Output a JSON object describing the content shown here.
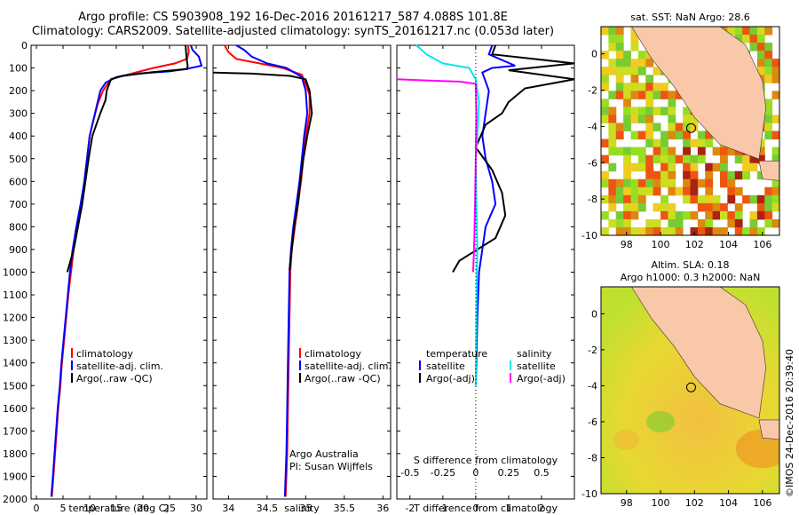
{
  "header": {
    "title_line1": "Argo profile: CS 5903908_192 16-Dec-2016 20161217_587 4.088S 101.8E",
    "title_line2": "Climatology: CARS2009. Satellite-adjusted climatology: synTS_20161217.nc (0.053d later)"
  },
  "credit": "©IMOS 24-Dec-2016 20:39:40",
  "colors": {
    "climatology": "#ff0000",
    "satellite": "#0000ff",
    "argo": "#000000",
    "satellite_s": "#00e5ee",
    "argo_s": "#ff00ff"
  },
  "chart_data": [
    {
      "type": "line",
      "id": "temperature",
      "xlabel": "temperature (deg C)",
      "ylabel": "",
      "xlim": [
        -1,
        32
      ],
      "ylim": [
        2000,
        0
      ],
      "x_ticks": [
        0,
        5,
        10,
        15,
        20,
        25,
        30
      ],
      "y_ticks": [
        0,
        100,
        200,
        300,
        400,
        500,
        600,
        700,
        800,
        900,
        1000,
        1100,
        1200,
        1300,
        1400,
        1500,
        1600,
        1700,
        1800,
        1900,
        2000
      ],
      "legend": [
        "climatology",
        "satellite-adj. clim.",
        "Argo(..raw -QC)"
      ],
      "legend_position": "lower-left",
      "series": [
        {
          "name": "climatology",
          "color": "#ff0000",
          "points": [
            [
              28.5,
              0
            ],
            [
              28.6,
              30
            ],
            [
              28.3,
              60
            ],
            [
              26,
              80
            ],
            [
              22,
              100
            ],
            [
              17,
              130
            ],
            [
              14,
              150
            ],
            [
              12.5,
              200
            ],
            [
              11.5,
              260
            ],
            [
              10.5,
              350
            ],
            [
              10,
              400
            ],
            [
              9.5,
              500
            ],
            [
              9,
              600
            ],
            [
              8.5,
              700
            ],
            [
              7.8,
              800
            ],
            [
              7,
              900
            ],
            [
              6.5,
              1000
            ],
            [
              6,
              1100
            ],
            [
              5.6,
              1200
            ],
            [
              5.2,
              1300
            ],
            [
              4.8,
              1400
            ],
            [
              4.5,
              1500
            ],
            [
              4.1,
              1600
            ],
            [
              3.8,
              1700
            ],
            [
              3.5,
              1800
            ],
            [
              3.2,
              1900
            ],
            [
              2.9,
              1990
            ]
          ]
        },
        {
          "name": "satellite-adj. clim.",
          "color": "#0000ff",
          "points": [
            [
              29,
              0
            ],
            [
              29.3,
              20
            ],
            [
              30.5,
              50
            ],
            [
              31,
              90
            ],
            [
              28,
              105
            ],
            [
              25,
              115
            ],
            [
              19,
              125
            ],
            [
              15,
              140
            ],
            [
              13,
              165
            ],
            [
              12,
              200
            ],
            [
              11.5,
              250
            ],
            [
              10.5,
              350
            ],
            [
              10,
              400
            ],
            [
              9.5,
              500
            ],
            [
              9,
              600
            ],
            [
              8.3,
              700
            ],
            [
              7.5,
              800
            ],
            [
              6.8,
              900
            ],
            [
              6.3,
              1000
            ],
            [
              5.9,
              1100
            ],
            [
              5.5,
              1200
            ],
            [
              5.1,
              1300
            ],
            [
              4.7,
              1400
            ],
            [
              4.4,
              1500
            ],
            [
              4,
              1600
            ],
            [
              3.7,
              1700
            ],
            [
              3.4,
              1800
            ],
            [
              3.1,
              1900
            ],
            [
              2.8,
              1990
            ]
          ]
        },
        {
          "name": "Argo(..raw -QC)",
          "color": "#000000",
          "points": [
            [
              28,
              0
            ],
            [
              28.1,
              30
            ],
            [
              28.2,
              60
            ],
            [
              28.4,
              90
            ],
            [
              28.3,
              105
            ],
            [
              22,
              118
            ],
            [
              16,
              135
            ],
            [
              14,
              150
            ],
            [
              13.2,
              200
            ],
            [
              13,
              240
            ],
            [
              12,
              300
            ],
            [
              10.5,
              400
            ],
            [
              9.8,
              500
            ],
            [
              9.2,
              600
            ],
            [
              8.6,
              700
            ],
            [
              7.8,
              800
            ],
            [
              7,
              900
            ],
            [
              5.8,
              1000
            ]
          ]
        }
      ]
    },
    {
      "type": "line",
      "id": "salinity",
      "xlabel": "salinity",
      "ylabel": "",
      "xlim": [
        33.8,
        36.1
      ],
      "ylim": [
        2000,
        0
      ],
      "x_ticks": [
        34,
        34.5,
        35,
        35.5,
        36
      ],
      "x_tick_labels": [
        "34",
        "34.5",
        "35",
        "35.5",
        "36"
      ],
      "legend": [
        "climatology",
        "satellite-adj. clim.",
        "Argo(..raw -QC)"
      ],
      "legend_position": "lower-right",
      "annotation_line1": "Argo Australia",
      "annotation_line2": "PI: Susan Wijffels",
      "series": [
        {
          "name": "climatology",
          "color": "#ff0000",
          "points": [
            [
              33.95,
              0
            ],
            [
              34,
              30
            ],
            [
              34.1,
              60
            ],
            [
              34.4,
              80
            ],
            [
              34.7,
              100
            ],
            [
              34.95,
              130
            ],
            [
              35,
              170
            ],
            [
              35.05,
              220
            ],
            [
              35.05,
              300
            ],
            [
              35,
              400
            ],
            [
              34.97,
              500
            ],
            [
              34.94,
              600
            ],
            [
              34.9,
              700
            ],
            [
              34.86,
              800
            ],
            [
              34.82,
              900
            ],
            [
              34.8,
              1000
            ],
            [
              34.79,
              1200
            ],
            [
              34.78,
              1400
            ],
            [
              34.77,
              1600
            ],
            [
              34.76,
              1800
            ],
            [
              34.74,
              1990
            ]
          ]
        },
        {
          "name": "satellite-adj. clim.",
          "color": "#0000ff",
          "points": [
            [
              34.1,
              0
            ],
            [
              34.2,
              20
            ],
            [
              34.3,
              50
            ],
            [
              34.5,
              80
            ],
            [
              34.75,
              100
            ],
            [
              34.95,
              140
            ],
            [
              35,
              200
            ],
            [
              35.02,
              300
            ],
            [
              34.98,
              400
            ],
            [
              34.95,
              500
            ],
            [
              34.92,
              600
            ],
            [
              34.88,
              700
            ],
            [
              34.84,
              800
            ],
            [
              34.81,
              900
            ],
            [
              34.79,
              1000
            ],
            [
              34.78,
              1200
            ],
            [
              34.77,
              1400
            ],
            [
              34.76,
              1600
            ],
            [
              34.75,
              1800
            ],
            [
              34.73,
              1990
            ]
          ]
        },
        {
          "name": "Argo(..raw -QC)",
          "color": "#000000",
          "points": [
            [
              33.8,
              120
            ],
            [
              34.3,
              125
            ],
            [
              34.8,
              135
            ],
            [
              35,
              150
            ],
            [
              35.05,
              200
            ],
            [
              35.08,
              300
            ],
            [
              35.02,
              400
            ],
            [
              34.97,
              500
            ],
            [
              34.93,
              600
            ],
            [
              34.9,
              700
            ],
            [
              34.85,
              800
            ],
            [
              34.82,
              900
            ],
            [
              34.79,
              990
            ]
          ]
        }
      ]
    },
    {
      "type": "line",
      "id": "difference",
      "xlabel": "T difference from climatology",
      "xlabel_top": "S difference from climatology",
      "xlim": [
        -2.4,
        3
      ],
      "ylim": [
        2000,
        0
      ],
      "x_ticks": [
        -2,
        -1,
        0,
        1,
        2
      ],
      "x_top_ticks": [
        -0.5,
        -0.25,
        0,
        0.25,
        0.5
      ],
      "x_top_tick_labels": [
        "-0.5",
        "-0.25",
        "0",
        "0.25",
        "0.5"
      ],
      "legend_temperature": [
        "temperature",
        "satellite",
        "Argo(-adj)"
      ],
      "legend_salinity": [
        "salinity",
        "satellite",
        "Argo(-adj)"
      ],
      "series": [
        {
          "name": "satellite",
          "color": "#0000ff",
          "points": [
            [
              0.5,
              0
            ],
            [
              0.4,
              40
            ],
            [
              1.2,
              90
            ],
            [
              0.5,
              100
            ],
            [
              0.2,
              120
            ],
            [
              0.4,
              200
            ],
            [
              0.3,
              300
            ],
            [
              0.2,
              400
            ],
            [
              0.3,
              500
            ],
            [
              0.5,
              600
            ],
            [
              0.6,
              700
            ],
            [
              0.3,
              800
            ],
            [
              0.2,
              900
            ],
            [
              0.1,
              1000
            ],
            [
              0.05,
              1200
            ],
            [
              0.02,
              1400
            ],
            [
              0,
              1500
            ]
          ]
        },
        {
          "name": "Argo(-adj)",
          "color": "#000000",
          "points": [
            [
              0.6,
              0
            ],
            [
              0.5,
              40
            ],
            [
              3,
              80
            ],
            [
              1,
              110
            ],
            [
              3,
              150
            ],
            [
              1.5,
              190
            ],
            [
              1,
              250
            ],
            [
              0.8,
              300
            ],
            [
              0.3,
              350
            ],
            [
              0,
              450
            ],
            [
              0.5,
              550
            ],
            [
              0.8,
              650
            ],
            [
              0.9,
              750
            ],
            [
              0.6,
              850
            ],
            [
              -0.5,
              950
            ],
            [
              -0.7,
              1000
            ]
          ]
        },
        {
          "name": "satellite",
          "color": "#00e5ee",
          "points": [
            [
              -1.8,
              0
            ],
            [
              -1.5,
              40
            ],
            [
              -1,
              80
            ],
            [
              -0.2,
              100
            ],
            [
              0,
              150
            ],
            [
              0.1,
              250
            ],
            [
              0.05,
              400
            ],
            [
              0,
              500
            ],
            [
              0.02,
              700
            ],
            [
              0.05,
              900
            ],
            [
              0.03,
              1000
            ],
            [
              0.02,
              1200
            ],
            [
              0,
              1500
            ]
          ]
        },
        {
          "name": "Argo(-adj)",
          "color": "#ff00ff",
          "points": [
            [
              -2.4,
              150
            ],
            [
              -1.5,
              155
            ],
            [
              -0.5,
              160
            ],
            [
              0,
              170
            ],
            [
              0.02,
              300
            ],
            [
              0,
              500
            ],
            [
              -0.02,
              700
            ],
            [
              -0.05,
              900
            ],
            [
              -0.08,
              1000
            ]
          ]
        }
      ]
    },
    {
      "type": "heatmap",
      "id": "sst_map",
      "title": "sat. SST: NaN Argo: 28.6",
      "xlim": [
        96.5,
        107
      ],
      "ylim": [
        -10,
        1.5
      ],
      "x_ticks": [
        98,
        100,
        102,
        104,
        106
      ],
      "y_ticks": [
        0,
        -2,
        -4,
        -6,
        -8,
        -10
      ],
      "marker": [
        101.8,
        -4.088
      ]
    },
    {
      "type": "heatmap",
      "id": "sla_map",
      "title": "Altim. SLA: 0.18",
      "subtitle": "Argo h1000: 0.3 h2000: NaN",
      "xlim": [
        96.5,
        107
      ],
      "ylim": [
        -10,
        1.5
      ],
      "x_ticks": [
        98,
        100,
        102,
        104,
        106
      ],
      "y_ticks": [
        0,
        -2,
        -4,
        -6,
        -8,
        -10
      ],
      "marker": [
        101.8,
        -4.088
      ]
    }
  ]
}
